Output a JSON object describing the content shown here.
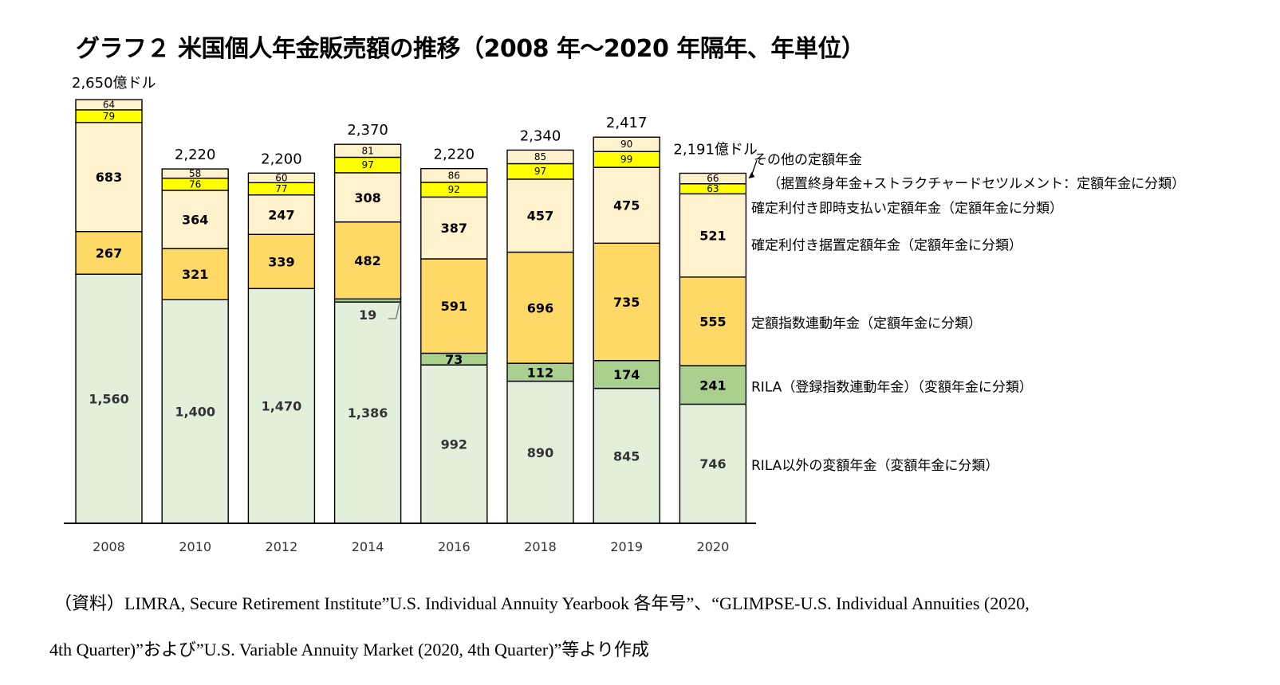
{
  "chart_data": {
    "type": "bar",
    "stacked": true,
    "title": "グラフ２ 米国個人年金販売額の推移（2008 年～2020 年隔年、年単位）",
    "categories": [
      "2008",
      "2010",
      "2012",
      "2014",
      "2016",
      "2018",
      "2019",
      "2020"
    ],
    "series": [
      {
        "name": "RILA以外の変額年金（変額年金に分類）",
        "values": [
          1560,
          1400,
          1470,
          1386,
          992,
          890,
          845,
          746
        ],
        "labels": [
          "1,560",
          "1,400",
          "1,470",
          "1,386",
          "992",
          "890",
          "845",
          "746"
        ],
        "color": "#e2efda"
      },
      {
        "name": "RILA（登録指数連動年金）（変額年金に分類）",
        "values": [
          0,
          0,
          0,
          19,
          73,
          112,
          174,
          241
        ],
        "labels": [
          "",
          "",
          "",
          "19",
          "73",
          "112",
          "174",
          "241"
        ],
        "color": "#a9d08e"
      },
      {
        "name": "定額指数連動年金（定額年金に分類）",
        "values": [
          267,
          321,
          339,
          482,
          591,
          696,
          735,
          555
        ],
        "labels": [
          "267",
          "321",
          "339",
          "482",
          "591",
          "696",
          "735",
          "555"
        ],
        "color": "#ffd966"
      },
      {
        "name": "確定利付き据置定額年金（定額年金に分類）",
        "values": [
          683,
          364,
          247,
          308,
          387,
          457,
          475,
          521
        ],
        "labels": [
          "683",
          "364",
          "247",
          "308",
          "387",
          "457",
          "475",
          "521"
        ],
        "color": "#fff2cc"
      },
      {
        "name": "確定利付き即時支払い定額年金（定額年金に分類）",
        "values": [
          79,
          76,
          77,
          97,
          92,
          97,
          99,
          63
        ],
        "labels": [
          "79",
          "76",
          "77",
          "97",
          "92",
          "97",
          "99",
          "63"
        ],
        "color": "#ffff00"
      },
      {
        "name": "その他の定額年金",
        "values": [
          64,
          58,
          60,
          81,
          86,
          85,
          90,
          66
        ],
        "labels": [
          "64",
          "58",
          "60",
          "81",
          "86",
          "85",
          "90",
          "66"
        ],
        "color": "#fff2cc"
      }
    ],
    "totals": [
      "2,650億ドル",
      "2,220",
      "2,200",
      "2,370",
      "2,220",
      "2,340",
      "2,417",
      "2,191億ドル"
    ],
    "legend_note": "（据置終身年金+ストラクチャードセツルメント：定額年金に分類）",
    "ylim": [
      0,
      2700
    ],
    "grid": false,
    "legend_placement": "right"
  },
  "source_note": {
    "line1": "（資料）LIMRA, Secure Retirement Institute”U.S. Individual Annuity Yearbook 各年号”、“GLIMPSE-U.S. Individual Annuities (2020,",
    "line2": "4th Quarter)”および”U.S. Variable Annuity Market (2020, 4th Quarter)”等より作成"
  }
}
